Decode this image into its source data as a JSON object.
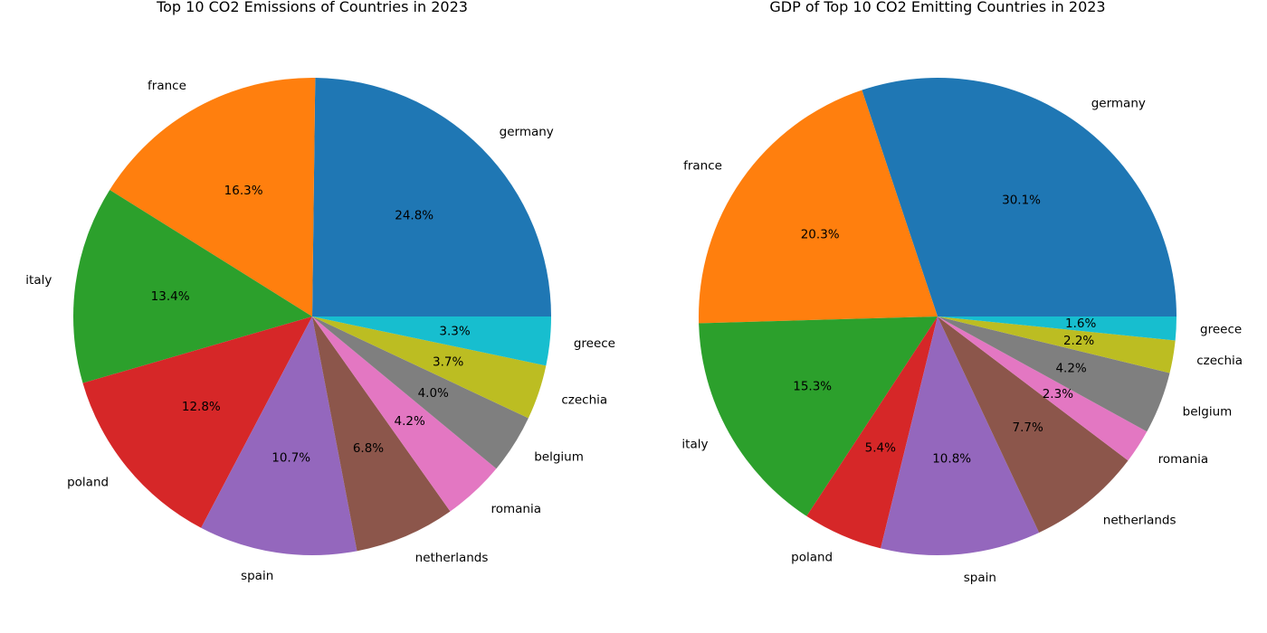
{
  "chart_data": [
    {
      "type": "pie",
      "title": "Top 10 CO2 Emissions of Countries in 2023",
      "categories": [
        "germany",
        "france",
        "italy",
        "poland",
        "spain",
        "netherlands",
        "romania",
        "belgium",
        "czechia",
        "greece"
      ],
      "values": [
        24.8,
        16.3,
        13.4,
        12.8,
        10.7,
        6.8,
        4.2,
        4.0,
        3.7,
        3.3
      ],
      "value_labels": [
        "24.8%",
        "16.3%",
        "13.4%",
        "12.8%",
        "10.7%",
        "6.8%",
        "4.2%",
        "4.0%",
        "3.7%",
        "3.3%"
      ],
      "colors": [
        "#1f77b4",
        "#ff7f0e",
        "#2ca02c",
        "#d62728",
        "#9467bd",
        "#8c564b",
        "#e377c2",
        "#7f7f7f",
        "#bcbd22",
        "#17becf"
      ],
      "start_angle_deg": 0,
      "direction": "counterclockwise"
    },
    {
      "type": "pie",
      "title": "GDP of Top 10 CO2 Emitting Countries in 2023",
      "categories": [
        "germany",
        "france",
        "italy",
        "poland",
        "spain",
        "netherlands",
        "romania",
        "belgium",
        "czechia",
        "greece"
      ],
      "values": [
        30.1,
        20.3,
        15.3,
        5.4,
        10.8,
        7.7,
        2.3,
        4.2,
        2.2,
        1.6
      ],
      "value_labels": [
        "30.1%",
        "20.3%",
        "15.3%",
        "5.4%",
        "10.8%",
        "7.7%",
        "2.3%",
        "4.2%",
        "2.2%",
        "1.6%"
      ],
      "colors": [
        "#1f77b4",
        "#ff7f0e",
        "#2ca02c",
        "#d62728",
        "#9467bd",
        "#8c564b",
        "#e377c2",
        "#7f7f7f",
        "#bcbd22",
        "#17becf"
      ],
      "start_angle_deg": 0,
      "direction": "counterclockwise"
    }
  ]
}
